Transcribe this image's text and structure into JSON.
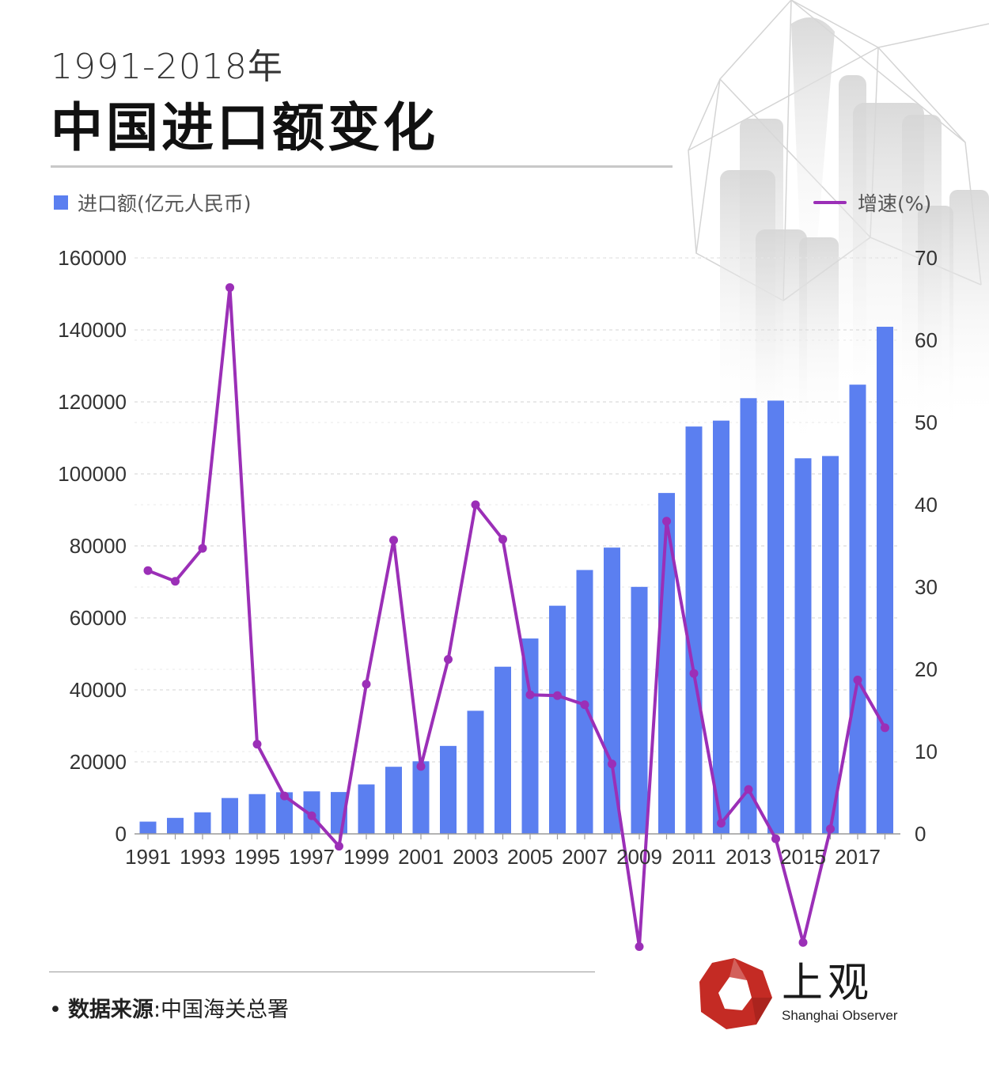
{
  "title": {
    "year": "1991-2018年",
    "main": "中国进口额变化"
  },
  "legend": {
    "bar": "进口额(亿元人民币)",
    "line": "增速(%)"
  },
  "source": {
    "label": "数据来源",
    "sep": ":",
    "text": "中国海关总署"
  },
  "logo": {
    "cn": "上观",
    "en": "Shanghai Observer"
  },
  "colors": {
    "bar": "#5b7ff0",
    "line": "#9b2fb7",
    "logo_red": "#c42b24"
  },
  "chart_data": {
    "type": "bar",
    "x": [
      1991,
      1992,
      1993,
      1994,
      1995,
      1996,
      1997,
      1998,
      1999,
      2000,
      2001,
      2002,
      2003,
      2004,
      2005,
      2006,
      2007,
      2008,
      2009,
      2010,
      2011,
      2012,
      2013,
      2014,
      2015,
      2016,
      2017,
      2018
    ],
    "x_tick_labels": [
      "1991",
      "1993",
      "1995",
      "1997",
      "1999",
      "2001",
      "2003",
      "2005",
      "2007",
      "2009",
      "2011",
      "2013",
      "2015",
      "2017"
    ],
    "series": [
      {
        "name": "进口额(亿元人民币)",
        "type": "bar",
        "axis": "left",
        "values": [
          3399,
          4443,
          5986,
          9960,
          11048,
          11557,
          11807,
          11622,
          13736,
          18639,
          20159,
          24430,
          34196,
          46436,
          54274,
          63377,
          73300,
          79527,
          68618,
          94700,
          113161,
          114801,
          121037,
          120358,
          104336,
          104967,
          124790,
          140874
        ]
      },
      {
        "name": "增速(%)",
        "type": "line",
        "axis": "right",
        "values": [
          32.0,
          30.7,
          34.7,
          66.4,
          10.9,
          4.6,
          2.2,
          -1.5,
          18.2,
          35.7,
          8.2,
          21.2,
          40.0,
          35.8,
          16.9,
          16.8,
          15.7,
          8.5,
          -13.7,
          38.0,
          19.5,
          1.3,
          5.4,
          -0.6,
          -13.2,
          0.6,
          18.7,
          12.9
        ]
      }
    ],
    "y_left": {
      "ticks": [
        "0",
        "20000",
        "40000",
        "60000",
        "80000",
        "100000",
        "120000",
        "140000",
        "160000"
      ],
      "lim": [
        0,
        160000
      ]
    },
    "y_right": {
      "ticks": [
        "0",
        "10",
        "20",
        "30",
        "40",
        "50",
        "60",
        "70"
      ],
      "lim": [
        0,
        70
      ]
    },
    "grid": "horizontal dashed"
  }
}
